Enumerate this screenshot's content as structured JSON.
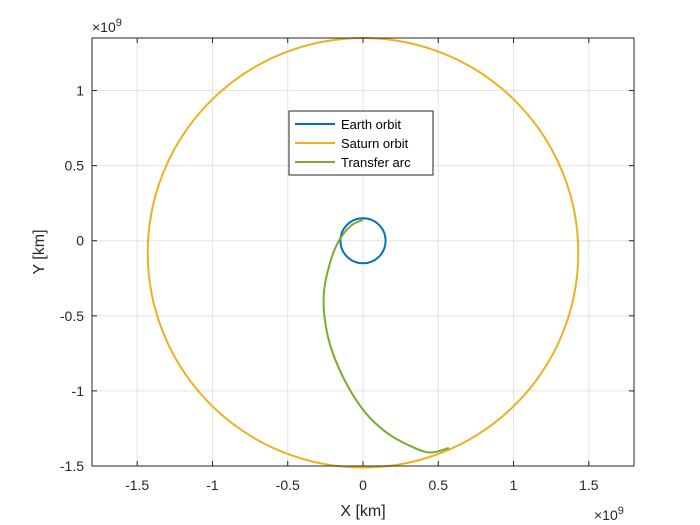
{
  "chart_data": {
    "type": "line",
    "xlabel": "X [km]",
    "ylabel": "Y [km]",
    "x_exponent_label": "×10",
    "x_exponent_power": "9",
    "y_exponent_label": "×10",
    "y_exponent_power": "9",
    "xlim": [
      -1800000000.0,
      1800000000.0
    ],
    "ylim": [
      -1500000000.0,
      1350000000.0
    ],
    "grid": true,
    "legend_position": "upper-center",
    "x_ticks": [
      {
        "value": -1500000000.0,
        "label": "-1.5"
      },
      {
        "value": -1000000000.0,
        "label": "-1"
      },
      {
        "value": -500000000.0,
        "label": "-0.5"
      },
      {
        "value": 0,
        "label": "0"
      },
      {
        "value": 500000000.0,
        "label": "0.5"
      },
      {
        "value": 1000000000.0,
        "label": "1"
      },
      {
        "value": 1500000000.0,
        "label": "1.5"
      }
    ],
    "y_ticks": [
      {
        "value": 1000000000.0,
        "label": "1"
      },
      {
        "value": 500000000.0,
        "label": "0.5"
      },
      {
        "value": 0,
        "label": "0"
      },
      {
        "value": -500000000.0,
        "label": "-0.5"
      },
      {
        "value": -1000000000.0,
        "label": "-1"
      },
      {
        "value": -1500000000.0,
        "label": "-1.5"
      }
    ],
    "series": [
      {
        "name": "Earth orbit",
        "color": "#0072BD",
        "kind": "circle",
        "center": [
          0,
          0
        ],
        "radius": 150000000.0
      },
      {
        "name": "Saturn orbit",
        "color": "#EDB120",
        "kind": "circle",
        "center": [
          0,
          -80000000.0
        ],
        "radius": 1430000000.0
      },
      {
        "name": "Transfer arc",
        "color": "#77AC30",
        "kind": "path",
        "x": [
          0.0,
          -80000000.0,
          -160000000.0,
          -220000000.0,
          -260000000.0,
          -250000000.0,
          -200000000.0,
          -100000000.0,
          20000000.0,
          160000000.0,
          300000000.0,
          440000000.0,
          570000000.0
        ],
        "y": [
          140000000.0,
          100000000.0,
          0.0,
          -150000000.0,
          -350000000.0,
          -550000000.0,
          -750000000.0,
          -970000000.0,
          -1150000000.0,
          -1280000000.0,
          -1360000000.0,
          -1410000000.0,
          -1380000000.0
        ]
      }
    ]
  }
}
